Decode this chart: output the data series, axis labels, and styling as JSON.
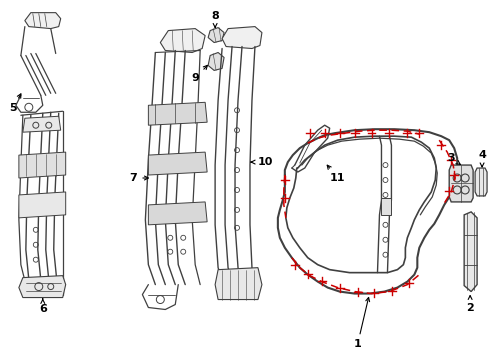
{
  "bg_color": "#ffffff",
  "line_color": "#404040",
  "red_color": "#cc0000",
  "fig_width": 4.89,
  "fig_height": 3.6,
  "dpi": 100
}
